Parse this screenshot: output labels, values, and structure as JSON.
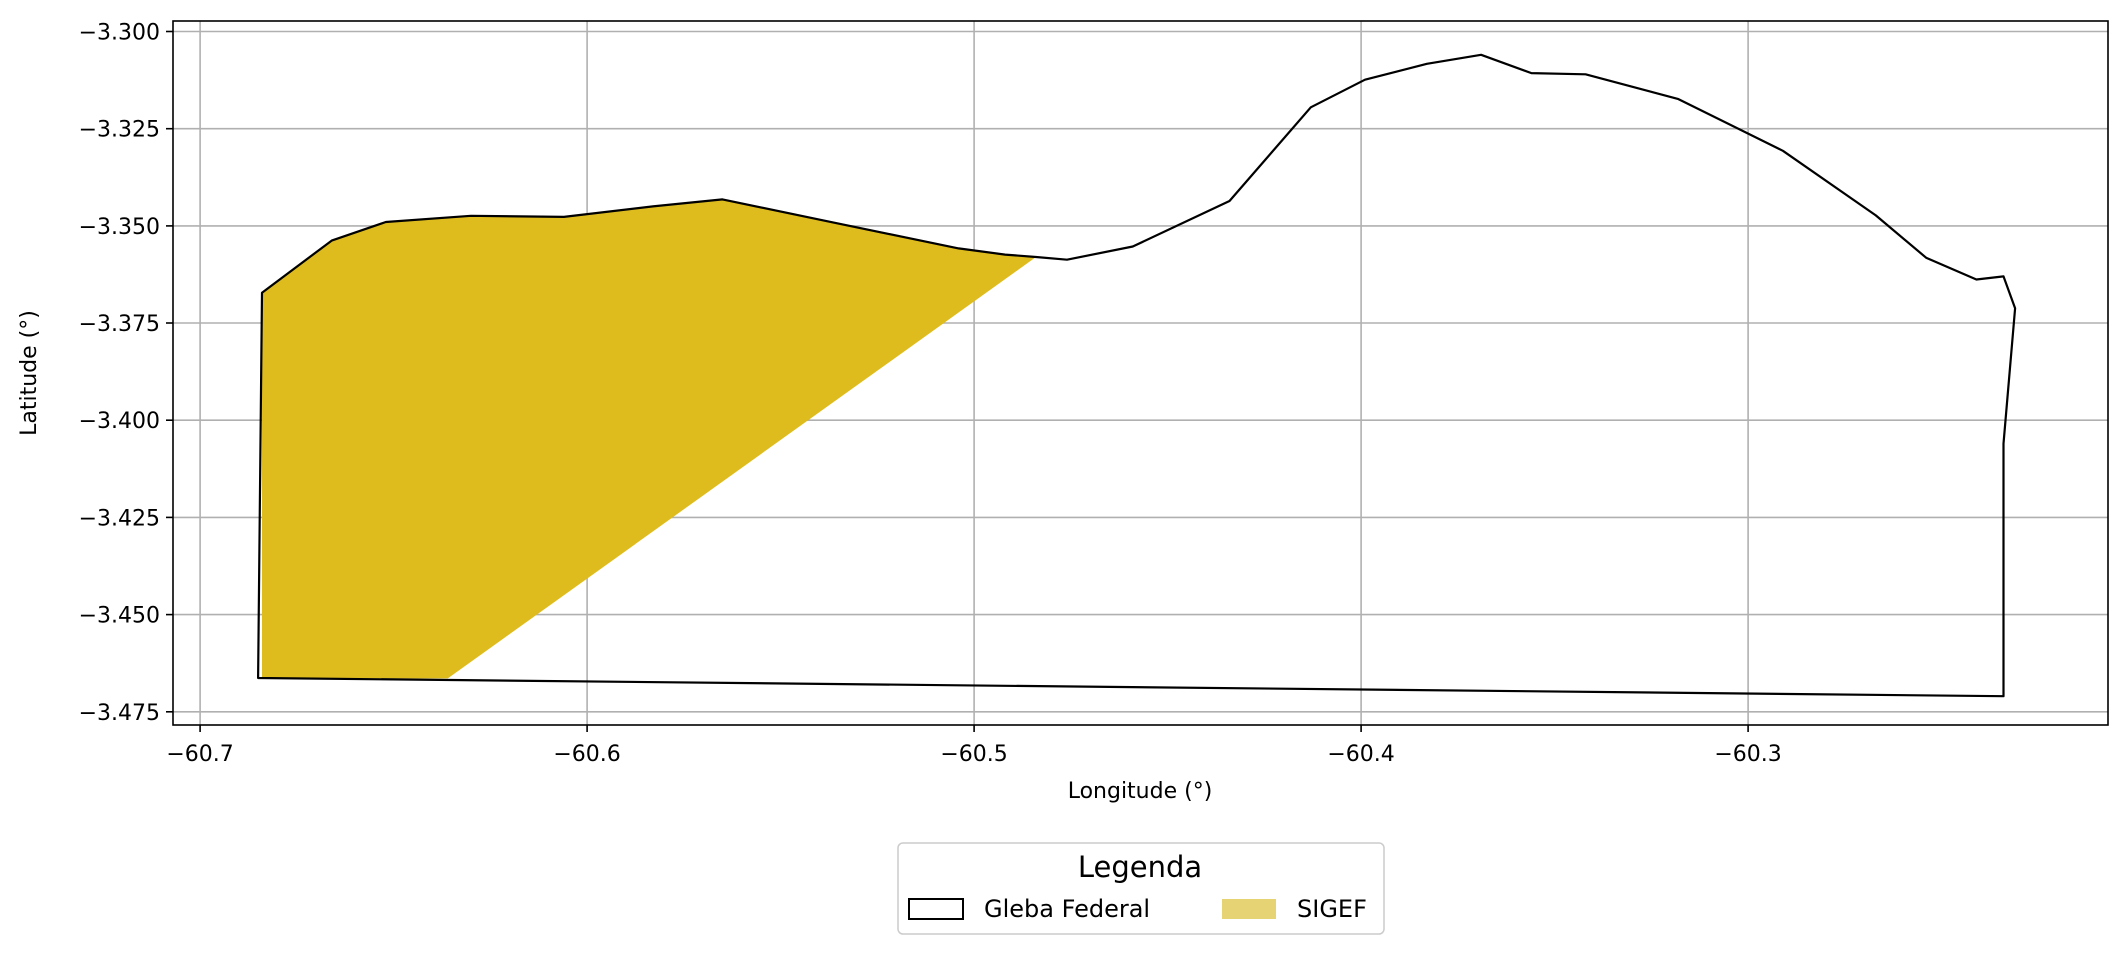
{
  "chart_data": {
    "type": "map",
    "xlabel": "Longitude (°)",
    "ylabel": "Latitude (°)",
    "xlim": [
      -60.707,
      -60.207
    ],
    "ylim": [
      -3.4784,
      -3.2973
    ],
    "grid": true,
    "x_ticks": [
      {
        "value": -60.7,
        "label": "−60.7"
      },
      {
        "value": -60.6,
        "label": "−60.6"
      },
      {
        "value": -60.5,
        "label": "−60.5"
      },
      {
        "value": -60.4,
        "label": "−60.4"
      },
      {
        "value": -60.3,
        "label": "−60.3"
      }
    ],
    "y_ticks": [
      {
        "value": -3.3,
        "label": "−3.300"
      },
      {
        "value": -3.325,
        "label": "−3.325"
      },
      {
        "value": -3.35,
        "label": "−3.350"
      },
      {
        "value": -3.375,
        "label": "−3.375"
      },
      {
        "value": -3.4,
        "label": "−3.400"
      },
      {
        "value": -3.425,
        "label": "−3.425"
      },
      {
        "value": -3.45,
        "label": "−3.450"
      },
      {
        "value": -3.475,
        "label": "−3.475"
      }
    ],
    "layers": [
      {
        "name": "SIGEF",
        "fill": "#dfbc1e",
        "stroke": "none",
        "coords": [
          [
            -60.684,
            -3.3672
          ],
          [
            -60.666,
            -3.3538
          ],
          [
            -60.652,
            -3.349
          ],
          [
            -60.63,
            -3.3474
          ],
          [
            -60.606,
            -3.3477
          ],
          [
            -60.583,
            -3.345
          ],
          [
            -60.565,
            -3.3432
          ],
          [
            -60.536,
            -3.3492
          ],
          [
            -60.504,
            -3.3558
          ],
          [
            -60.492,
            -3.3574
          ],
          [
            -60.484,
            -3.358
          ],
          [
            -60.636,
            -3.4664
          ],
          [
            -60.684,
            -3.4664
          ]
        ]
      },
      {
        "name": "Gleba Federal",
        "fill": "none",
        "stroke": "#000000",
        "coords": [
          [
            -60.684,
            -3.3672
          ],
          [
            -60.666,
            -3.3538
          ],
          [
            -60.652,
            -3.349
          ],
          [
            -60.63,
            -3.3474
          ],
          [
            -60.606,
            -3.3477
          ],
          [
            -60.583,
            -3.345
          ],
          [
            -60.565,
            -3.3432
          ],
          [
            -60.536,
            -3.3492
          ],
          [
            -60.504,
            -3.3558
          ],
          [
            -60.492,
            -3.3574
          ],
          [
            -60.484,
            -3.358
          ],
          [
            -60.476,
            -3.3587
          ],
          [
            -60.459,
            -3.3553
          ],
          [
            -60.434,
            -3.3436
          ],
          [
            -60.413,
            -3.3195
          ],
          [
            -60.399,
            -3.3124
          ],
          [
            -60.383,
            -3.3083
          ],
          [
            -60.369,
            -3.306
          ],
          [
            -60.356,
            -3.3107
          ],
          [
            -60.342,
            -3.311
          ],
          [
            -60.318,
            -3.3174
          ],
          [
            -60.291,
            -3.3307
          ],
          [
            -60.267,
            -3.3473
          ],
          [
            -60.254,
            -3.3582
          ],
          [
            -60.241,
            -3.3638
          ],
          [
            -60.234,
            -3.363
          ],
          [
            -60.231,
            -3.3712
          ],
          [
            -60.234,
            -3.406
          ],
          [
            -60.234,
            -3.471
          ],
          [
            -60.685,
            -3.4663
          ]
        ]
      }
    ],
    "legend": {
      "title": "Legenda",
      "position": "bottom-center",
      "items": [
        {
          "label": "Gleba Federal",
          "fill": "#ffffff",
          "stroke": "#000000"
        },
        {
          "label": "SIGEF",
          "fill": "#e6d474",
          "stroke": "none"
        }
      ]
    }
  }
}
